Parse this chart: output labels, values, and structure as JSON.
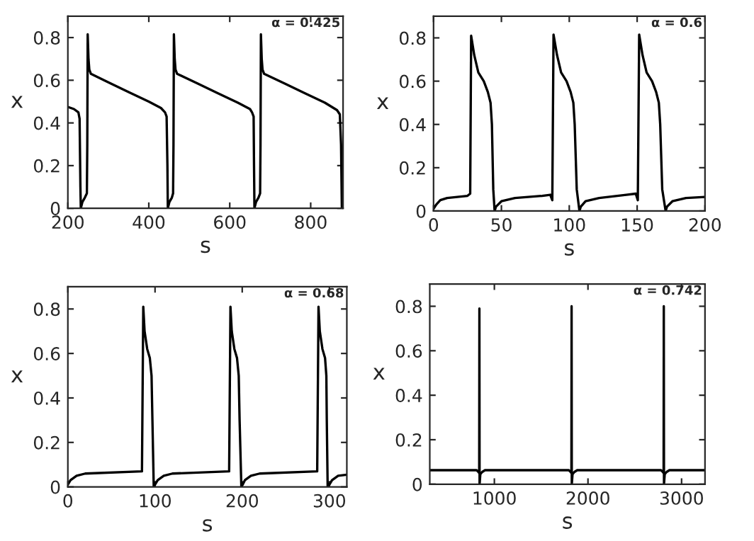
{
  "chart_data": [
    {
      "type": "line",
      "xlabel": "s",
      "ylabel": "x",
      "annotations": [
        "α = 0.425"
      ],
      "xlim": [
        200,
        880
      ],
      "ylim": [
        0,
        0.9
      ],
      "xticks": [
        200,
        400,
        600,
        800
      ],
      "yticks": [
        0,
        0.2,
        0.4,
        0.6,
        0.8
      ],
      "x": [
        200,
        215,
        226,
        229,
        231,
        232,
        236,
        242,
        247,
        248,
        249,
        251,
        253,
        257,
        300,
        350,
        400,
        430,
        440,
        444,
        446,
        447,
        451,
        457,
        460,
        461,
        462,
        464,
        466,
        470,
        520,
        570,
        620,
        650,
        655,
        659,
        660,
        661,
        665,
        671,
        675,
        676,
        677,
        679,
        681,
        685,
        735,
        785,
        835,
        865,
        872,
        875,
        877
      ],
      "series": [
        {
          "color": "#000000",
          "values": [
            0.475,
            0.465,
            0.45,
            0.42,
            0.1,
            0,
            0.03,
            0.05,
            0.07,
            0.3,
            0.815,
            0.7,
            0.65,
            0.63,
            0.59,
            0.545,
            0.5,
            0.47,
            0.45,
            0.43,
            0.2,
            0,
            0.03,
            0.05,
            0.07,
            0.3,
            0.815,
            0.7,
            0.65,
            0.63,
            0.585,
            0.54,
            0.495,
            0.465,
            0.45,
            0.43,
            0.2,
            0,
            0.03,
            0.05,
            0.07,
            0.3,
            0.815,
            0.7,
            0.65,
            0.63,
            0.585,
            0.54,
            0.495,
            0.46,
            0.44,
            0.3,
            0
          ]
        }
      ]
    },
    {
      "type": "line",
      "xlabel": "s",
      "ylabel": "x",
      "annotations": [
        "α = 0.6"
      ],
      "xlim": [
        0,
        200
      ],
      "ylim": [
        0,
        0.9
      ],
      "xticks": [
        0,
        50,
        100,
        150,
        200
      ],
      "yticks": [
        0,
        0.2,
        0.4,
        0.6,
        0.8
      ],
      "x": [
        0,
        2,
        5,
        10,
        25,
        27,
        27.7,
        30,
        33,
        37,
        40,
        42,
        43,
        44,
        45,
        46,
        50,
        60,
        80,
        86,
        87.5,
        88.4,
        91,
        94,
        98,
        101,
        103,
        104,
        105.5,
        107.5,
        108.5,
        112,
        122,
        142,
        149,
        150.5,
        151.5,
        154,
        157,
        161,
        164,
        166,
        167,
        168.5,
        171,
        172,
        176,
        186,
        200
      ],
      "series": [
        {
          "color": "#000000",
          "values": [
            0.01,
            0.03,
            0.05,
            0.06,
            0.07,
            0.08,
            0.81,
            0.72,
            0.64,
            0.6,
            0.55,
            0.5,
            0.4,
            0.1,
            0,
            0.02,
            0.045,
            0.06,
            0.07,
            0.075,
            0.05,
            0.815,
            0.72,
            0.64,
            0.6,
            0.55,
            0.5,
            0.4,
            0.1,
            0,
            0.02,
            0.045,
            0.06,
            0.075,
            0.08,
            0.05,
            0.815,
            0.72,
            0.64,
            0.6,
            0.55,
            0.5,
            0.4,
            0.1,
            0,
            0.02,
            0.045,
            0.06,
            0.065
          ]
        }
      ]
    },
    {
      "type": "line",
      "xlabel": "s",
      "ylabel": "x",
      "annotations": [
        "α = 0.68"
      ],
      "xlim": [
        0,
        320
      ],
      "ylim": [
        0,
        0.9
      ],
      "xticks": [
        0,
        100,
        200,
        300
      ],
      "yticks": [
        0,
        0.2,
        0.4,
        0.6,
        0.8
      ],
      "x": [
        0,
        3,
        10,
        20,
        85,
        86.5,
        88,
        91,
        94,
        96,
        97,
        98.5,
        100,
        103,
        110,
        120,
        185,
        186.5,
        188,
        191,
        194,
        196,
        197,
        199,
        200.5,
        203,
        210,
        220,
        286,
        287.5,
        289,
        292,
        295,
        296.5,
        297,
        298,
        300,
        303,
        310,
        320
      ],
      "series": [
        {
          "color": "#000000",
          "values": [
            0.01,
            0.03,
            0.05,
            0.06,
            0.07,
            0.81,
            0.7,
            0.62,
            0.58,
            0.5,
            0.3,
            0,
            0.01,
            0.03,
            0.05,
            0.06,
            0.07,
            0.81,
            0.7,
            0.62,
            0.58,
            0.5,
            0.3,
            0,
            0.01,
            0.03,
            0.05,
            0.06,
            0.07,
            0.81,
            0.7,
            0.62,
            0.58,
            0.5,
            0.3,
            0,
            0.01,
            0.03,
            0.05,
            0.055
          ]
        }
      ]
    },
    {
      "type": "line",
      "xlabel": "s",
      "ylabel": "x",
      "annotations": [
        "α = 0.742"
      ],
      "xlim": [
        310,
        3250
      ],
      "ylim": [
        0,
        0.9
      ],
      "xticks": [
        1000,
        2000,
        3000
      ],
      "yticks": [
        0,
        0.2,
        0.4,
        0.6,
        0.8
      ],
      "x": [
        310,
        810,
        830,
        838,
        840,
        842,
        850,
        870,
        900,
        1795,
        1815,
        1823,
        1825,
        1827,
        1835,
        1855,
        1885,
        2780,
        2800,
        2808,
        2810,
        2812,
        2820,
        2840,
        2870,
        3250
      ],
      "series": [
        {
          "color": "#000000",
          "values": [
            0.063,
            0.063,
            0.055,
            0.05,
            0.79,
            0.0,
            0.045,
            0.055,
            0.063,
            0.063,
            0.055,
            0.05,
            0.8,
            0.0,
            0.045,
            0.055,
            0.063,
            0.063,
            0.055,
            0.05,
            0.8,
            0.0,
            0.045,
            0.055,
            0.063,
            0.063
          ]
        }
      ]
    }
  ]
}
